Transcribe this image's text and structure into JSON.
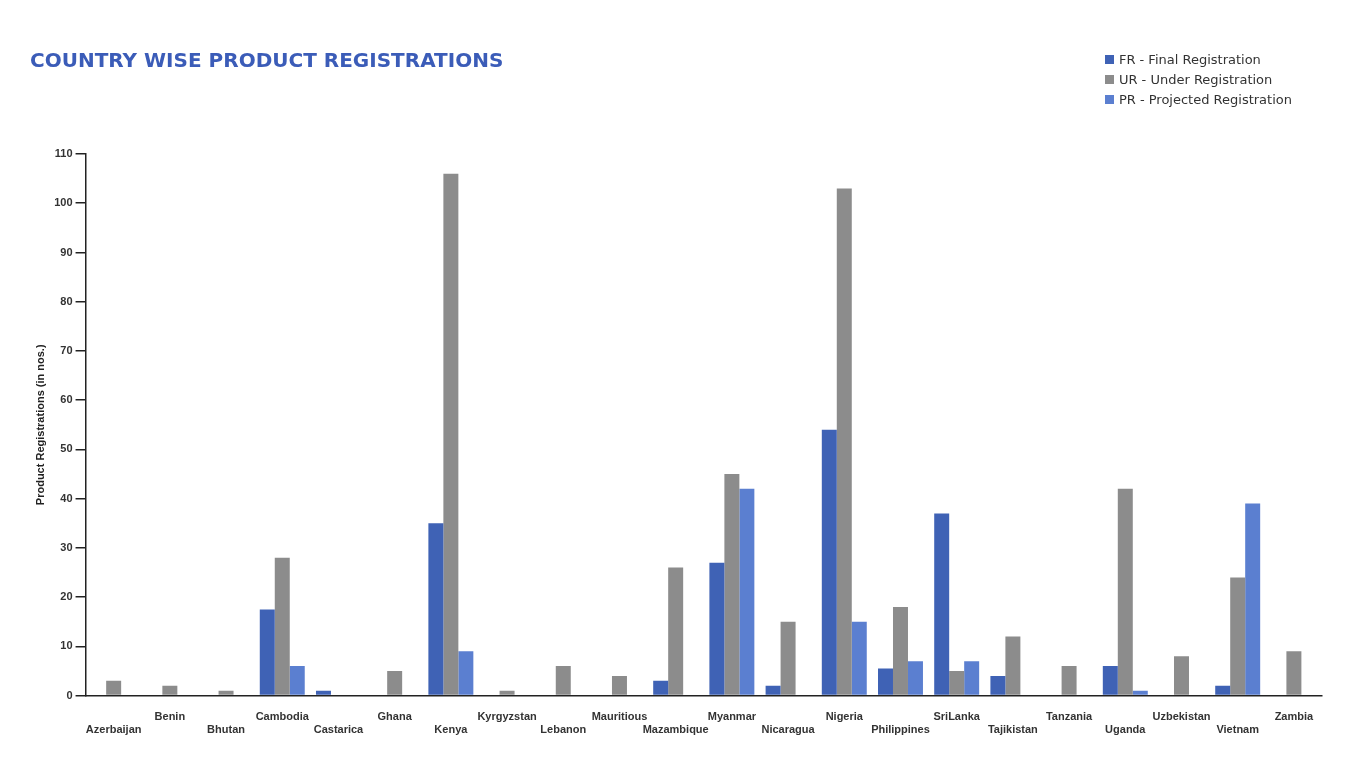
{
  "chart_data": {
    "type": "bar",
    "title": "COUNTRY WISE PRODUCT REGISTRATIONS",
    "ylabel": "Product Registrations (in nos.)",
    "categories": [
      "Azerbaijan",
      "Benin",
      "Bhutan",
      "Cambodia",
      "Castarica",
      "Ghana",
      "Kenya",
      "Kyrgyzstan",
      "Lebanon",
      "Mauritious",
      "Mazambique",
      "Myanmar",
      "Nicaragua",
      "Nigeria",
      "Philippines",
      "SriLanka",
      "Tajikistan",
      "Tanzania",
      "Uganda",
      "Uzbekistan",
      "Vietnam",
      "Zambia"
    ],
    "series": [
      {
        "name": "FR - Final Registration",
        "color": "#3f62b5",
        "values": [
          null,
          null,
          null,
          17.5,
          1,
          null,
          35,
          null,
          null,
          null,
          3,
          27,
          2,
          54,
          5.5,
          37,
          4,
          null,
          6,
          null,
          2,
          null
        ]
      },
      {
        "name": "UR - Under Registration",
        "color": "#8c8c8c",
        "values": [
          3,
          2,
          1,
          28,
          null,
          5,
          106,
          1,
          6,
          4,
          26,
          45,
          15,
          103,
          18,
          5,
          12,
          6,
          42,
          8,
          24,
          9
        ]
      },
      {
        "name": "PR - Projected Registration",
        "color": "#5b7fd0",
        "values": [
          null,
          null,
          null,
          6,
          null,
          null,
          9,
          null,
          null,
          null,
          null,
          42,
          null,
          15,
          7,
          7,
          null,
          null,
          1,
          null,
          39,
          null
        ]
      }
    ],
    "ylim": [
      0,
      110
    ],
    "yticks": [
      0,
      10,
      20,
      30,
      40,
      50,
      60,
      70,
      80,
      90,
      100,
      110
    ],
    "grid": false,
    "legend": "top right"
  }
}
